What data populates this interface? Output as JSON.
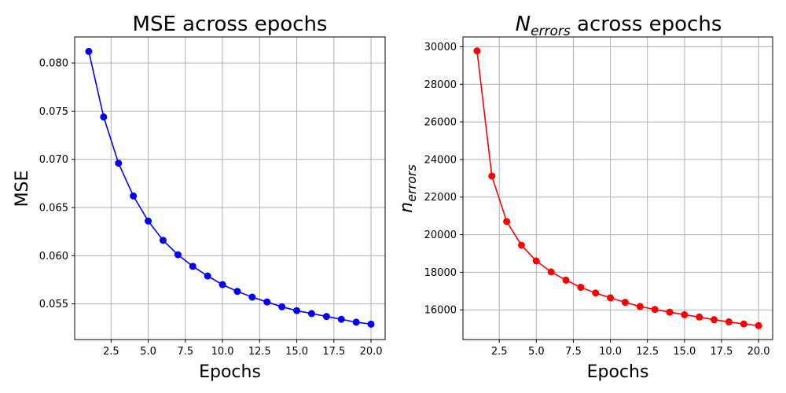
{
  "chart_data": [
    {
      "type": "line",
      "title": "MSE across epochs",
      "xlabel": "Epochs",
      "ylabel": "MSE",
      "grid": true,
      "color": "#0000ff",
      "marker": "circle",
      "xlim": [
        0.05,
        20.95
      ],
      "ylim": [
        0.0513,
        0.0827
      ],
      "xticks": [
        2.5,
        5.0,
        7.5,
        10.0,
        12.5,
        15.0,
        17.5,
        20.0
      ],
      "xtick_labels": [
        "2.5",
        "5.0",
        "7.5",
        "10.0",
        "12.5",
        "15.0",
        "17.5",
        "20.0"
      ],
      "yticks": [
        0.055,
        0.06,
        0.065,
        0.07,
        0.075,
        0.08
      ],
      "ytick_labels": [
        "0.055",
        "0.060",
        "0.065",
        "0.070",
        "0.075",
        "0.080"
      ],
      "x": [
        1,
        2,
        3,
        4,
        5,
        6,
        7,
        8,
        9,
        10,
        11,
        12,
        13,
        14,
        15,
        16,
        17,
        18,
        19,
        20
      ],
      "y": [
        0.0812,
        0.0744,
        0.0696,
        0.0662,
        0.0636,
        0.0616,
        0.0601,
        0.0589,
        0.0579,
        0.057,
        0.0563,
        0.0557,
        0.0552,
        0.0547,
        0.0543,
        0.054,
        0.0537,
        0.0534,
        0.0531,
        0.0529
      ]
    },
    {
      "type": "line",
      "title_main": "N",
      "title_sub": "errors",
      "title_rest": " across epochs",
      "xlabel": "Epochs",
      "ylabel_main": "n",
      "ylabel_sub": "errors",
      "grid": true,
      "color": "#ff0000",
      "marker": "circle",
      "xlim": [
        0.05,
        20.95
      ],
      "ylim": [
        14420,
        30520
      ],
      "xticks": [
        2.5,
        5.0,
        7.5,
        10.0,
        12.5,
        15.0,
        17.5,
        20.0
      ],
      "xtick_labels": [
        "2.5",
        "5.0",
        "7.5",
        "10.0",
        "12.5",
        "15.0",
        "17.5",
        "20.0"
      ],
      "yticks": [
        16000,
        18000,
        20000,
        22000,
        24000,
        26000,
        28000,
        30000
      ],
      "ytick_labels": [
        "16000",
        "18000",
        "20000",
        "22000",
        "24000",
        "26000",
        "28000",
        "30000"
      ],
      "x": [
        1,
        2,
        3,
        4,
        5,
        6,
        7,
        8,
        9,
        10,
        11,
        12,
        13,
        14,
        15,
        16,
        17,
        18,
        19,
        20
      ],
      "y": [
        29780,
        23120,
        20700,
        19440,
        18600,
        18020,
        17580,
        17200,
        16900,
        16640,
        16400,
        16180,
        16020,
        15880,
        15740,
        15620,
        15480,
        15360,
        15250,
        15160
      ]
    }
  ]
}
